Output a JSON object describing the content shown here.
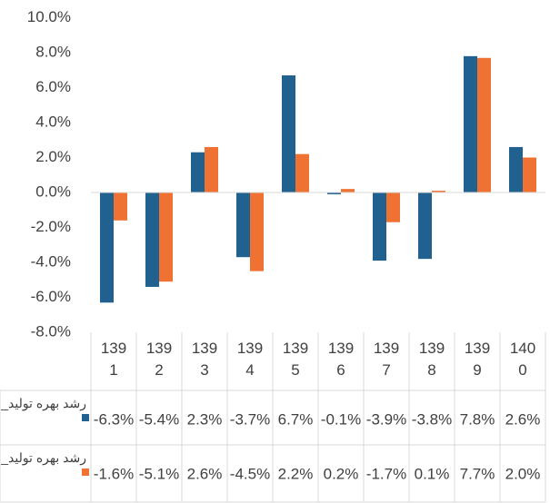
{
  "chart_data": {
    "type": "bar",
    "categories": [
      "1391",
      "1392",
      "1393",
      "1394",
      "1395",
      "1396",
      "1397",
      "1398",
      "1399",
      "1400"
    ],
    "series": [
      {
        "name": "رشد بهره تولید_",
        "color": "#20618f",
        "values": [
          -6.3,
          -5.4,
          2.3,
          -3.7,
          6.7,
          -0.1,
          -3.9,
          -3.8,
          7.8,
          2.6
        ],
        "value_labels": [
          "-6.3%",
          "-5.4%",
          "2.3%",
          "-3.7%",
          "6.7%",
          "-0.1%",
          "-3.9%",
          "-3.8%",
          "7.8%",
          "2.6%"
        ]
      },
      {
        "name": "رشد بهره تولید_",
        "color": "#f07232",
        "values": [
          -1.6,
          -5.1,
          2.6,
          -4.5,
          2.2,
          0.2,
          -1.7,
          0.1,
          7.7,
          2.0
        ],
        "value_labels": [
          "-1.6%",
          "-5.1%",
          "2.6%",
          "-4.5%",
          "2.2%",
          "0.2%",
          "-1.7%",
          "0.1%",
          "7.7%",
          "2.0%"
        ]
      }
    ],
    "ylim": [
      -8,
      10
    ],
    "yticks": [
      {
        "value": -8,
        "label": "-8.0%"
      },
      {
        "value": -6,
        "label": "-6.0%"
      },
      {
        "value": -4,
        "label": "-4.0%"
      },
      {
        "value": -2,
        "label": "-2.0%"
      },
      {
        "value": 0,
        "label": "0.0%"
      },
      {
        "value": 2,
        "label": "2.0%"
      },
      {
        "value": 4,
        "label": "4.0%"
      },
      {
        "value": 6,
        "label": "6.0%"
      },
      {
        "value": 8,
        "label": "8.0%"
      },
      {
        "value": 10,
        "label": "10.0%"
      }
    ],
    "grid": false
  }
}
